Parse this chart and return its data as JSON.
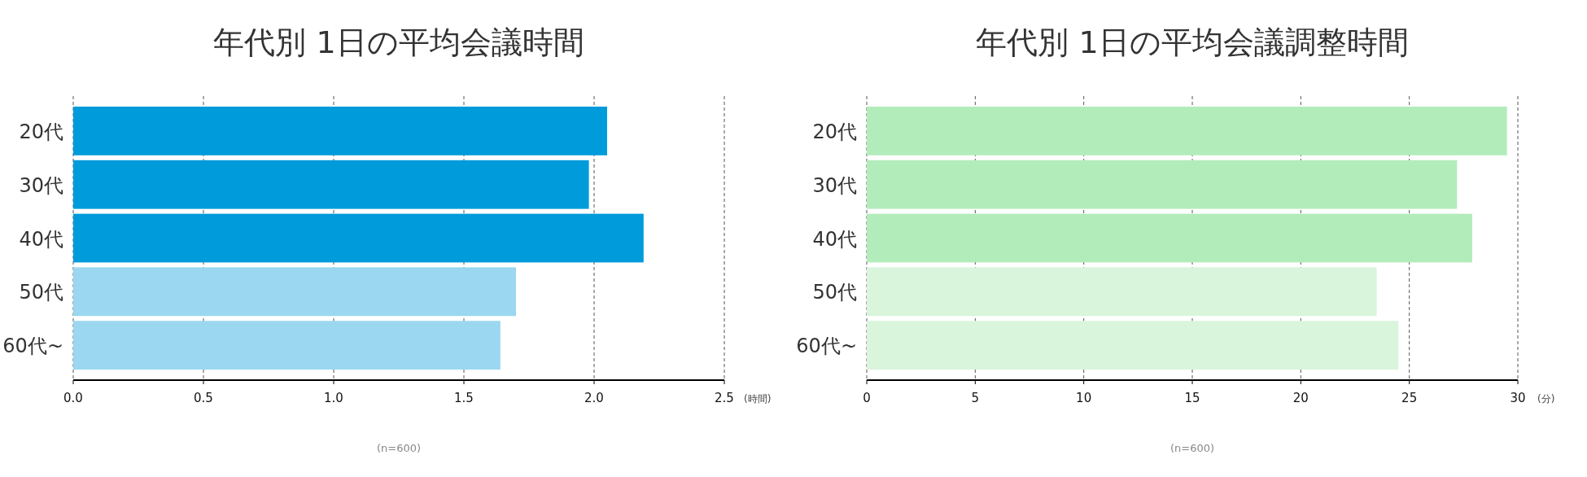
{
  "chart_data": [
    {
      "type": "bar",
      "orientation": "horizontal",
      "title": "年代別 1日の平均会議時間",
      "xlabel": "(時間)",
      "categories": [
        "20代",
        "30代",
        "40代",
        "50代",
        "60代~"
      ],
      "values": [
        2.05,
        1.98,
        2.19,
        1.7,
        1.64
      ],
      "colors": [
        "#009bdb",
        "#009bdb",
        "#009bdb",
        "#9bd7f0",
        "#9bd7f0"
      ],
      "xlim": [
        0,
        2.5
      ],
      "xticks": [
        {
          "value": 0,
          "label": "0.0"
        },
        {
          "value": 0.5,
          "label": "0.5"
        },
        {
          "value": 1,
          "label": "1.0"
        },
        {
          "value": 1.5,
          "label": "1.5"
        },
        {
          "value": 2,
          "label": "2.0"
        },
        {
          "value": 2.5,
          "label": "2.5"
        }
      ],
      "grid": "x",
      "annotations": [
        "(n=600)"
      ]
    },
    {
      "type": "bar",
      "orientation": "horizontal",
      "title": "年代別 1日の平均会議調整時間",
      "xlabel": "(分)",
      "categories": [
        "20代",
        "30代",
        "40代",
        "50代",
        "60代~"
      ],
      "values": [
        29.5,
        27.2,
        27.9,
        23.5,
        24.5
      ],
      "colors": [
        "#b3ecbb",
        "#b3ecbb",
        "#b3ecbb",
        "#d9f5dc",
        "#d9f5dc"
      ],
      "xlim": [
        0,
        30
      ],
      "xticks": [
        0,
        5,
        10,
        15,
        20,
        25,
        30
      ],
      "grid": "x",
      "annotations": [
        "(n=600)"
      ]
    }
  ]
}
